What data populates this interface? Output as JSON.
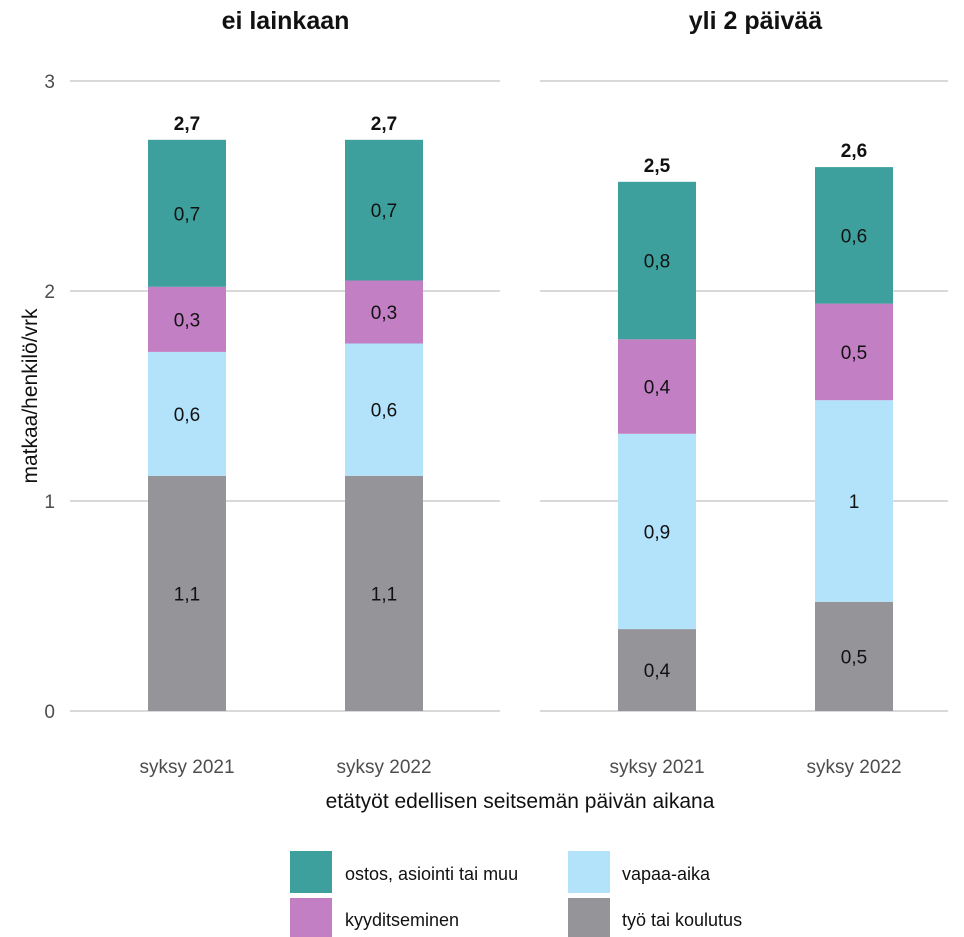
{
  "chart_data": {
    "type": "bar",
    "stacked": true,
    "ylabel": "matkaa/henkilö/vrk",
    "xlabel": "etätyöt edellisen seitsemän päivän aikana",
    "ylim": [
      0,
      3
    ],
    "yticks": [
      "0",
      "1",
      "2",
      "3"
    ],
    "grid": true,
    "legend_position": "bottom",
    "categories": [
      "syksy 2021",
      "syksy 2022"
    ],
    "series": [
      {
        "name": "työ tai koulutus",
        "color": "#959498"
      },
      {
        "name": "vapaa-aika",
        "color": "#b3e3fb"
      },
      {
        "name": "kyyditseminen",
        "color": "#c37fc3"
      },
      {
        "name": "ostos, asiointi tai muu",
        "color": "#3ea09d"
      }
    ],
    "legend_order": [
      "ostos, asiointi tai muu",
      "vapaa-aika",
      "kyyditseminen",
      "työ tai koulutus"
    ],
    "panels": [
      {
        "title": "ei lainkaan",
        "bars": [
          {
            "category": "syksy 2021",
            "values": [
              1.12,
              0.59,
              0.31,
              0.7
            ],
            "labels": [
              "1,1",
              "0,6",
              "0,3",
              "0,7"
            ],
            "total": 2.72,
            "total_label": "2,7"
          },
          {
            "category": "syksy 2022",
            "values": [
              1.12,
              0.63,
              0.3,
              0.67
            ],
            "labels": [
              "1,1",
              "0,6",
              "0,3",
              "0,7"
            ],
            "total": 2.72,
            "total_label": "2,7"
          }
        ]
      },
      {
        "title": "yli 2 päivää",
        "bars": [
          {
            "category": "syksy 2021",
            "values": [
              0.39,
              0.93,
              0.45,
              0.75
            ],
            "labels": [
              "0,4",
              "0,9",
              "0,4",
              "0,8"
            ],
            "total": 2.52,
            "total_label": "2,5"
          },
          {
            "category": "syksy 2022",
            "values": [
              0.52,
              0.96,
              0.46,
              0.65
            ],
            "labels": [
              "0,5",
              "1",
              "0,5",
              "0,6"
            ],
            "total": 2.59,
            "total_label": "2,6"
          }
        ]
      }
    ]
  }
}
